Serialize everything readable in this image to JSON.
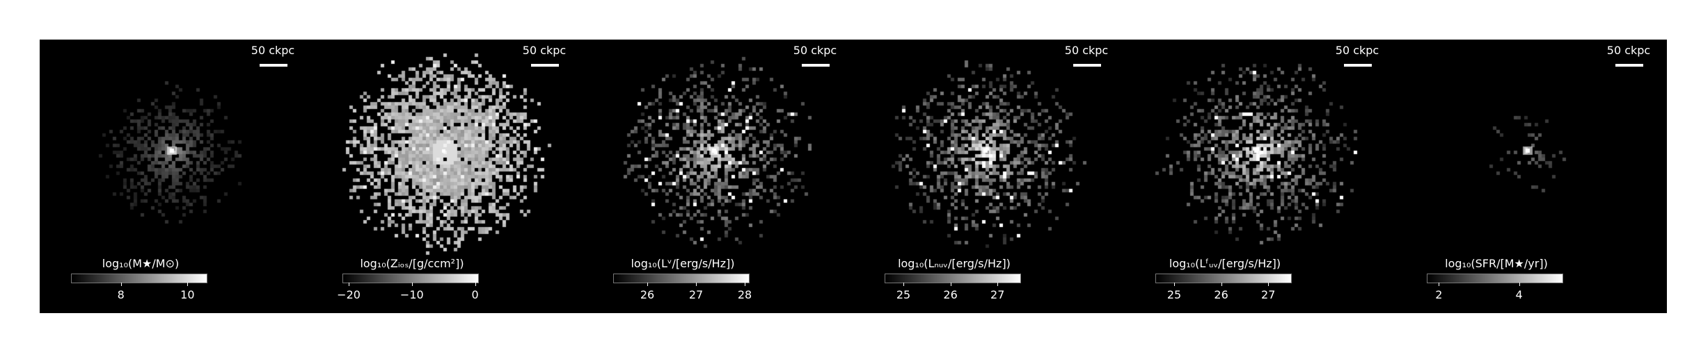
{
  "figure": {
    "panels": [
      {
        "id": "mass",
        "scale_label": "50 ckpc",
        "colorbar_title": "log₁₀(M★/M⊙)",
        "ticks": [
          {
            "v": 8,
            "label": "8"
          },
          {
            "v": 10,
            "label": "10"
          }
        ],
        "cbar_range": [
          6.5,
          10.6
        ],
        "style": "mass"
      },
      {
        "id": "metals",
        "scale_label": "50 ckpc",
        "colorbar_title": "log₁₀(Zᵢₒₛ/[g/ccm²])",
        "ticks": [
          {
            "v": -20,
            "label": "−20"
          },
          {
            "v": -10,
            "label": "−10"
          },
          {
            "v": 0,
            "label": "0"
          }
        ],
        "cbar_range": [
          -21,
          0.6
        ],
        "style": "metal"
      },
      {
        "id": "lum_v",
        "scale_label": "50 ckpc",
        "colorbar_title": "log₁₀(Lᵛ/[erg/s/Hz])",
        "ticks": [
          {
            "v": 26,
            "label": "26"
          },
          {
            "v": 27,
            "label": "27"
          },
          {
            "v": 28,
            "label": "28"
          }
        ],
        "cbar_range": [
          25.3,
          28.1
        ],
        "style": "lum"
      },
      {
        "id": "lum_nuv",
        "scale_label": "50 ckpc",
        "colorbar_title": "log₁₀(Lₙᵤᵥ/[erg/s/Hz])",
        "ticks": [
          {
            "v": 25,
            "label": "25"
          },
          {
            "v": 26,
            "label": "26"
          },
          {
            "v": 27,
            "label": "27"
          }
        ],
        "cbar_range": [
          24.6,
          27.5
        ],
        "style": "lum"
      },
      {
        "id": "lum_fuv",
        "scale_label": "50 ckpc",
        "colorbar_title": "log₁₀(Lᶠᵤᵥ/[erg/s/Hz])",
        "ticks": [
          {
            "v": 25,
            "label": "25"
          },
          {
            "v": 26,
            "label": "26"
          },
          {
            "v": 27,
            "label": "27"
          }
        ],
        "cbar_range": [
          24.6,
          27.5
        ],
        "style": "lum"
      },
      {
        "id": "sfr",
        "scale_label": "50 ckpc",
        "colorbar_title": "log₁₀(SFR/[M★/yr])",
        "ticks": [
          {
            "v": 2,
            "label": "2"
          },
          {
            "v": 4,
            "label": "4"
          }
        ],
        "cbar_range": [
          1.7,
          5.1
        ],
        "style": "sfr"
      }
    ]
  }
}
